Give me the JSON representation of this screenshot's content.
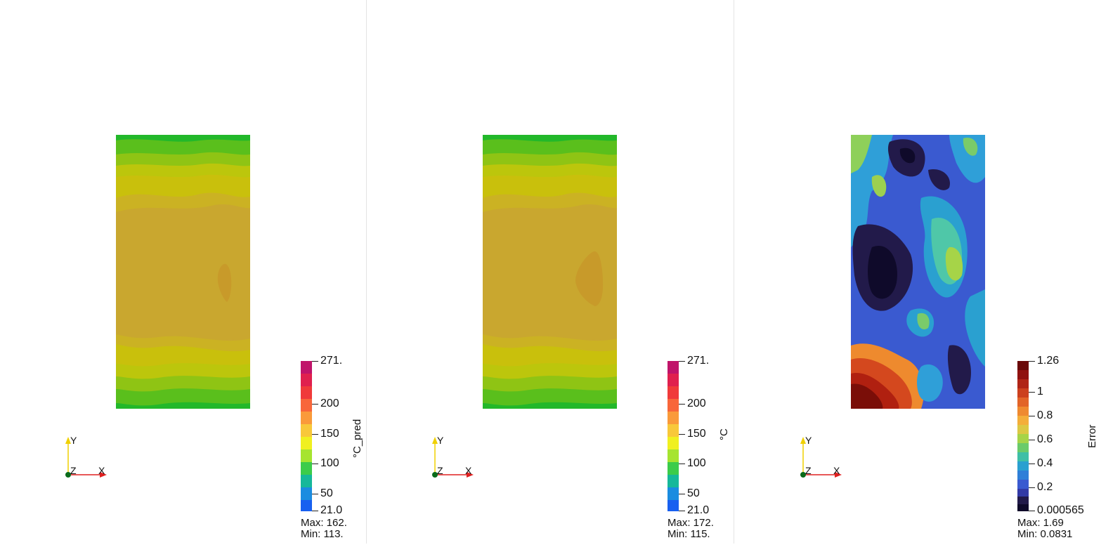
{
  "panels": [
    {
      "id": "pred",
      "colorbar": {
        "title": "°C_pred",
        "scheme": "rainbow",
        "ticks": [
          {
            "label": "271.",
            "frac": 1.0
          },
          {
            "label": "200",
            "frac": 0.716
          },
          {
            "label": "150",
            "frac": 0.516
          },
          {
            "label": "100",
            "frac": 0.316
          },
          {
            "label": "50",
            "frac": 0.116
          },
          {
            "label": "21.0",
            "frac": 0.0
          }
        ]
      },
      "stats": {
        "max": "Max: 162.",
        "min": "Min: 113."
      }
    },
    {
      "id": "true",
      "colorbar": {
        "title": "°C",
        "scheme": "rainbow",
        "ticks": [
          {
            "label": "271.",
            "frac": 1.0
          },
          {
            "label": "200",
            "frac": 0.716
          },
          {
            "label": "150",
            "frac": 0.516
          },
          {
            "label": "100",
            "frac": 0.316
          },
          {
            "label": "50",
            "frac": 0.116
          },
          {
            "label": "21.0",
            "frac": 0.0
          }
        ]
      },
      "stats": {
        "max": "Max: 172.",
        "min": "Min: 115."
      }
    },
    {
      "id": "error",
      "colorbar": {
        "title": "Error",
        "scheme": "heat",
        "ticks": [
          {
            "label": "1.26",
            "frac": 1.0
          },
          {
            "label": "1",
            "frac": 0.793
          },
          {
            "label": "0.8",
            "frac": 0.634
          },
          {
            "label": "0.6",
            "frac": 0.476
          },
          {
            "label": "0.4",
            "frac": 0.317
          },
          {
            "label": "0.2",
            "frac": 0.158
          },
          {
            "label": "0.000565",
            "frac": 0.0
          }
        ]
      },
      "stats": {
        "max": "Max: 1.69",
        "min": "Min: 0.0831"
      }
    }
  ],
  "axes": {
    "y": "Y",
    "z": "Z",
    "x": "X"
  },
  "colors": {
    "x_axis": "#e02020",
    "y_axis": "#f0d000",
    "origin": "#0a6b1a",
    "field_bands_outer_to_inner": [
      "#22b82a",
      "#5abf1c",
      "#8fc414",
      "#bcc60c",
      "#c9c00c",
      "#cbb223",
      "#c9a72f"
    ],
    "hotspot": "#c89a2a"
  }
}
